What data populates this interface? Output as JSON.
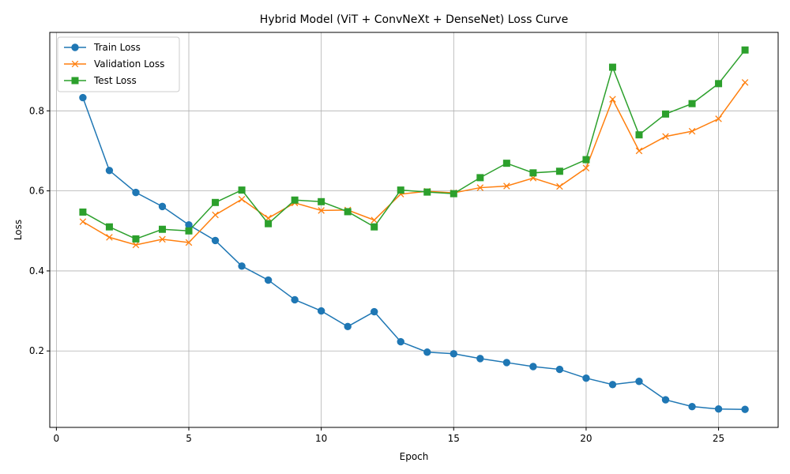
{
  "chart_data": {
    "type": "line",
    "title": "Hybrid Model (ViT + ConvNeXt + DenseNet) Loss Curve",
    "xlabel": "Epoch",
    "ylabel": "Loss",
    "xlim": [
      -0.25,
      27.25
    ],
    "ylim": [
      0.009,
      0.996
    ],
    "xticks": [
      0,
      5,
      10,
      15,
      20,
      25
    ],
    "yticks": [
      0.2,
      0.4,
      0.6,
      0.8
    ],
    "grid": true,
    "legend_position": "top-left",
    "x": [
      1,
      2,
      3,
      4,
      5,
      6,
      7,
      8,
      9,
      10,
      11,
      12,
      13,
      14,
      15,
      16,
      17,
      18,
      19,
      20,
      21,
      22,
      23,
      24,
      25,
      26
    ],
    "series": [
      {
        "name": "Train Loss",
        "color": "#1f77b4",
        "marker": "circle",
        "values": [
          0.833,
          0.651,
          0.596,
          0.561,
          0.515,
          0.476,
          0.412,
          0.377,
          0.328,
          0.3,
          0.261,
          0.298,
          0.223,
          0.197,
          0.193,
          0.181,
          0.171,
          0.161,
          0.154,
          0.132,
          0.116,
          0.124,
          0.078,
          0.061,
          0.055,
          0.054
        ]
      },
      {
        "name": "Validation Loss",
        "color": "#ff7f0e",
        "marker": "x",
        "values": [
          0.523,
          0.484,
          0.465,
          0.479,
          0.471,
          0.54,
          0.579,
          0.532,
          0.57,
          0.551,
          0.552,
          0.527,
          0.592,
          0.599,
          0.595,
          0.608,
          0.612,
          0.632,
          0.611,
          0.657,
          0.829,
          0.7,
          0.736,
          0.749,
          0.78,
          0.871
        ]
      },
      {
        "name": "Test Loss",
        "color": "#2ca02c",
        "marker": "square",
        "values": [
          0.547,
          0.51,
          0.48,
          0.504,
          0.5,
          0.571,
          0.602,
          0.518,
          0.577,
          0.573,
          0.548,
          0.51,
          0.602,
          0.597,
          0.593,
          0.633,
          0.669,
          0.645,
          0.649,
          0.678,
          0.909,
          0.74,
          0.792,
          0.818,
          0.868,
          0.952
        ]
      }
    ]
  }
}
